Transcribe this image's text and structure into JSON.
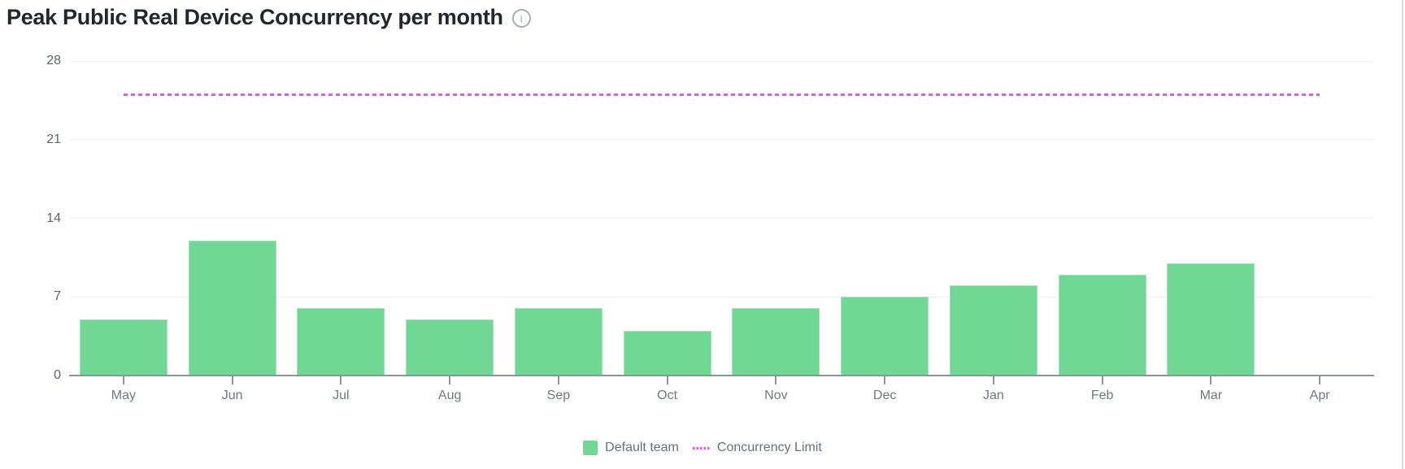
{
  "title": "Peak Public Real Device Concurrency per month",
  "header": {
    "info_icon": "info-circle"
  },
  "legend": {
    "items": [
      {
        "label": "Default team",
        "swatch": "square",
        "color": "#70d795"
      },
      {
        "label": "Concurrency Limit",
        "swatch": "dashed-line",
        "color": "#e356ef"
      }
    ]
  },
  "colors": {
    "bar_fill": "#70d795",
    "limit_line": "#e356ef",
    "gridline": "#f0f1f3",
    "axis_line": "#8f9499",
    "y_tick_label": "#5b6472",
    "x_tick_label": "#6e7889",
    "legend_text": "#667083",
    "title_text": "#22262e",
    "info_icon": "#a7aeb8",
    "background": "#ffffff"
  },
  "chart_data": {
    "type": "bar",
    "title": "Peak Public Real Device Concurrency per month",
    "categories": [
      "May",
      "Jun",
      "Jul",
      "Aug",
      "Sep",
      "Oct",
      "Nov",
      "Dec",
      "Jan",
      "Feb",
      "Mar",
      "Apr"
    ],
    "series": [
      {
        "name": "Default team",
        "type": "bar",
        "color": "#70d795",
        "values": [
          5,
          12,
          6,
          5,
          6,
          4,
          6,
          7,
          8,
          9,
          10,
          0
        ]
      },
      {
        "name": "Concurrency Limit",
        "type": "dashed-line",
        "color": "#e356ef",
        "value": 25
      }
    ],
    "xlabel": "",
    "ylabel": "",
    "ylim": [
      0,
      28
    ],
    "yticks": [
      0,
      7,
      14,
      21,
      28
    ],
    "grid": "horizontal",
    "legend_position": "bottom"
  }
}
